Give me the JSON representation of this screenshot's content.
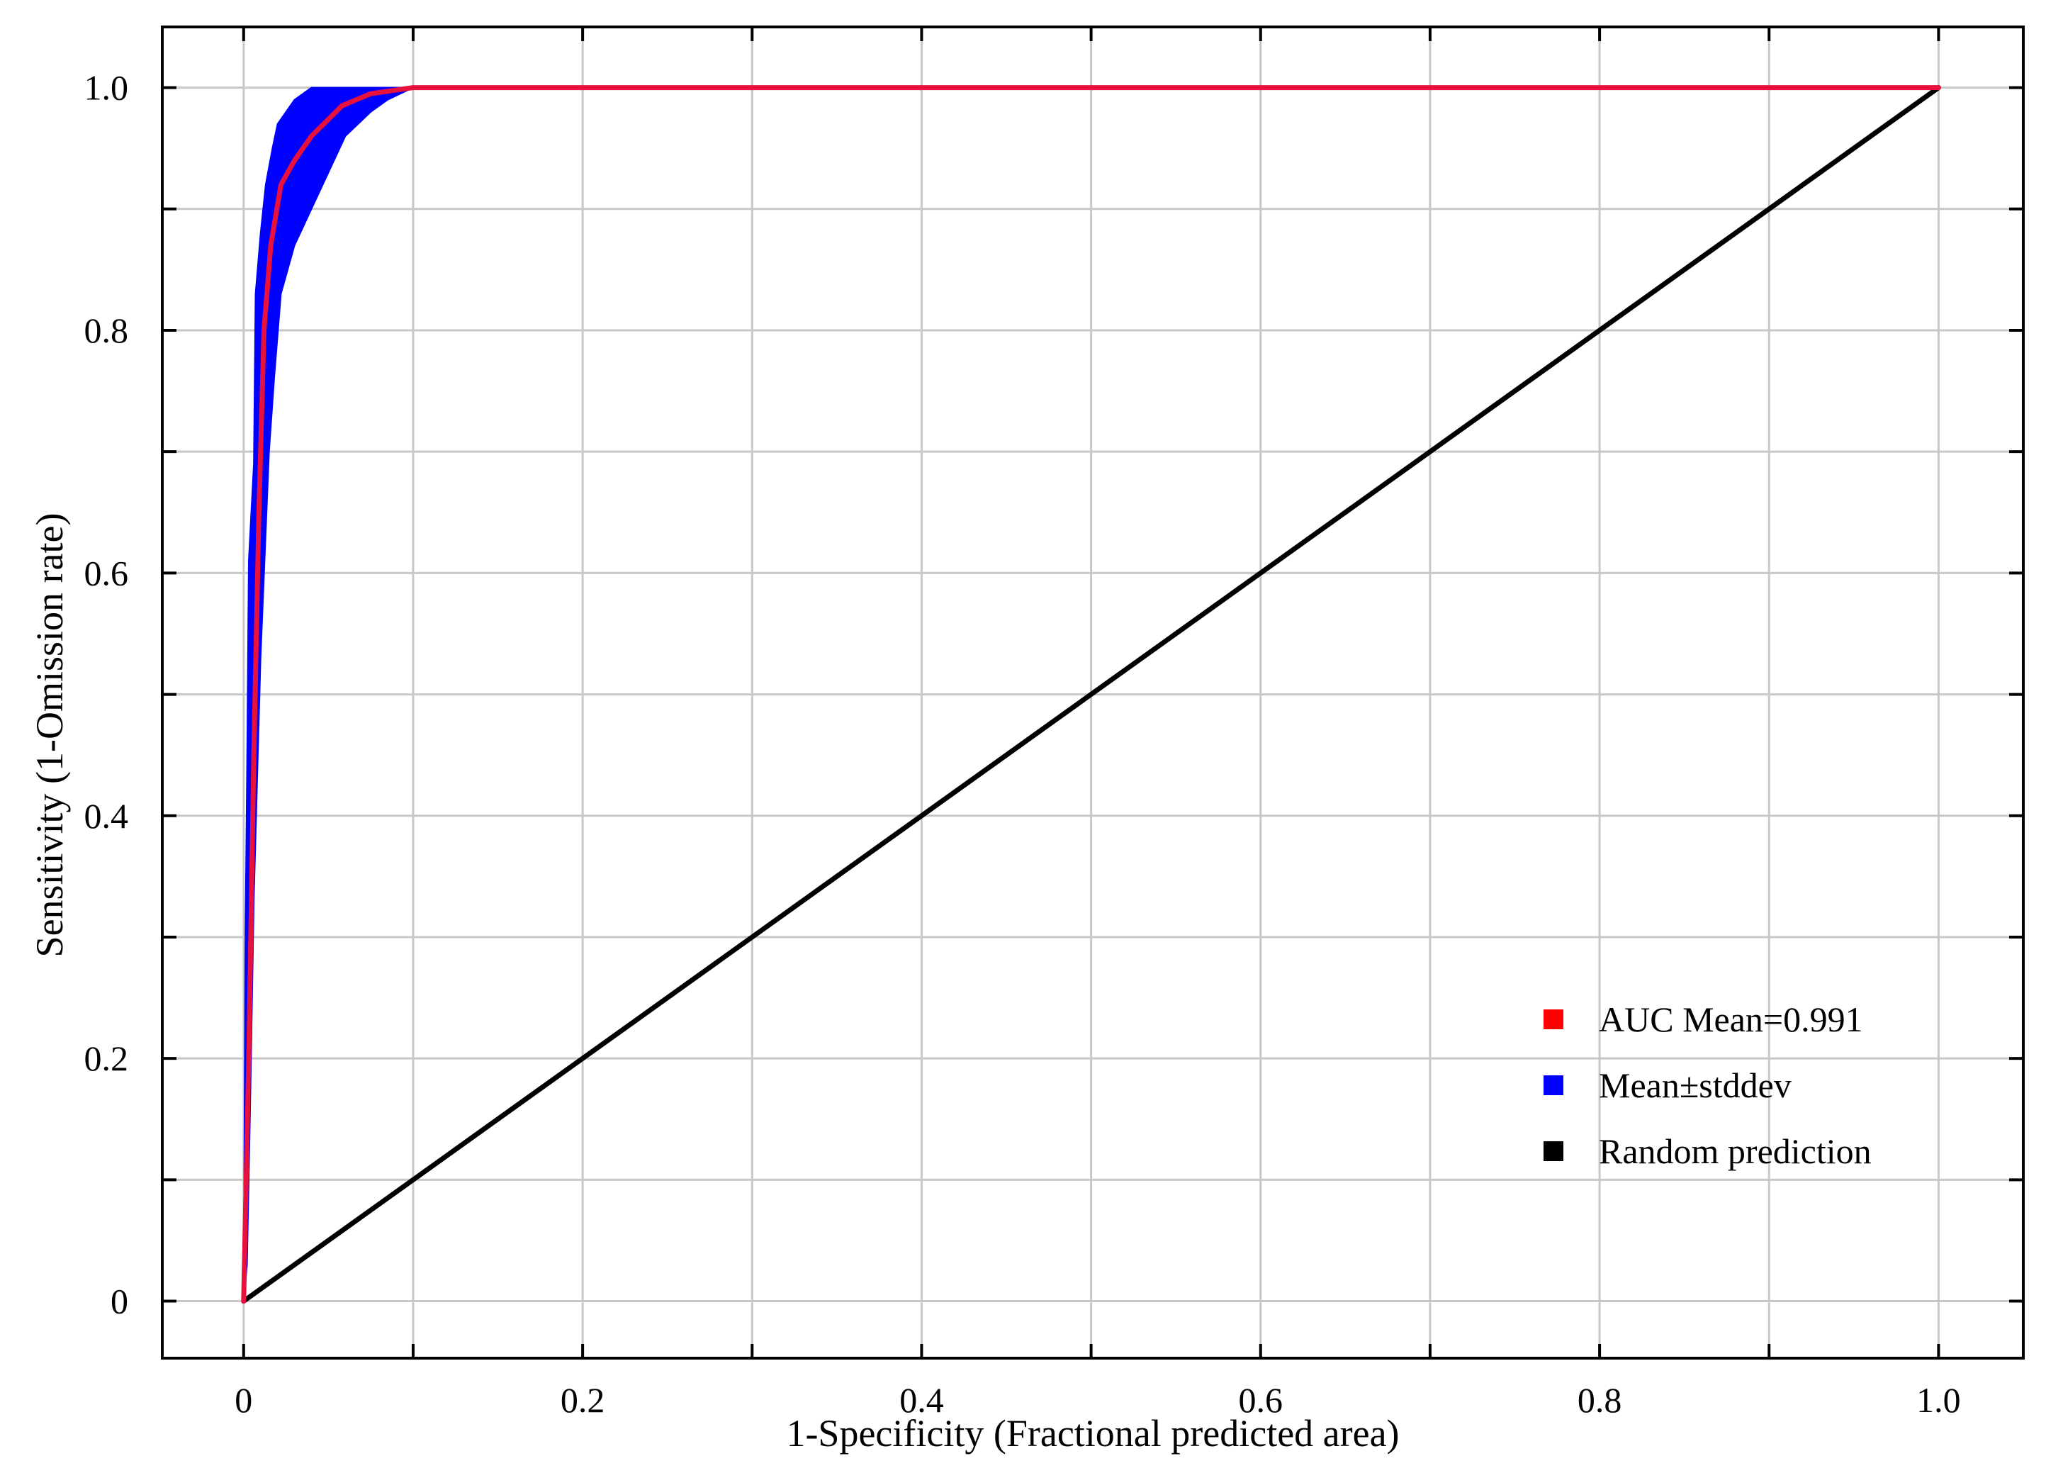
{
  "chart_data": {
    "type": "line",
    "title": "",
    "xlabel": "1-Specificity (Fractional predicted area)",
    "ylabel": "Sensitivity (1-Omission rate)",
    "xlim": [
      -0.048,
      1.05
    ],
    "ylim": [
      -0.047,
      1.05
    ],
    "grid": true,
    "legend_position": "bottom-right",
    "x_ticks": [
      {
        "value": 0,
        "label": "0"
      },
      {
        "value": 0.2,
        "label": "0.2"
      },
      {
        "value": 0.4,
        "label": "0.4"
      },
      {
        "value": 0.6,
        "label": "0.6"
      },
      {
        "value": 0.8,
        "label": "0.8"
      },
      {
        "value": 1.0,
        "label": "1.0"
      }
    ],
    "y_ticks": [
      {
        "value": 0,
        "label": "0"
      },
      {
        "value": 0.2,
        "label": "0.2"
      },
      {
        "value": 0.4,
        "label": "0.4"
      },
      {
        "value": 0.6,
        "label": "0.6"
      },
      {
        "value": 0.8,
        "label": "0.8"
      },
      {
        "value": 1.0,
        "label": "1.0"
      }
    ],
    "minor_gridlines": [
      0.1,
      0.3,
      0.5,
      0.7,
      0.9
    ],
    "series": [
      {
        "name": "Mean±stddev",
        "type": "area",
        "color": "#0000ff",
        "upper": [
          [
            0,
            0
          ],
          [
            0.001,
            0.3
          ],
          [
            0.002,
            0.44
          ],
          [
            0.003,
            0.61
          ],
          [
            0.006,
            0.69
          ],
          [
            0.007,
            0.83
          ],
          [
            0.01,
            0.88
          ],
          [
            0.013,
            0.92
          ],
          [
            0.017,
            0.95
          ],
          [
            0.02,
            0.97
          ],
          [
            0.025,
            0.98
          ],
          [
            0.03,
            0.99
          ],
          [
            0.04,
            1.0
          ],
          [
            1.0,
            1.0
          ]
        ],
        "lower": [
          [
            0,
            0
          ],
          [
            0.002,
            0.03
          ],
          [
            0.004,
            0.17
          ],
          [
            0.006,
            0.33
          ],
          [
            0.01,
            0.53
          ],
          [
            0.015,
            0.7
          ],
          [
            0.018,
            0.76
          ],
          [
            0.022,
            0.83
          ],
          [
            0.03,
            0.87
          ],
          [
            0.04,
            0.9
          ],
          [
            0.05,
            0.93
          ],
          [
            0.06,
            0.96
          ],
          [
            0.075,
            0.98
          ],
          [
            0.085,
            0.99
          ],
          [
            0.1,
            1.0
          ],
          [
            1.0,
            1.0
          ]
        ]
      },
      {
        "name": "AUC Mean=0.991",
        "type": "line",
        "color": "#e8103c",
        "points": [
          [
            0,
            0
          ],
          [
            0.003,
            0.2
          ],
          [
            0.006,
            0.45
          ],
          [
            0.009,
            0.65
          ],
          [
            0.012,
            0.8
          ],
          [
            0.016,
            0.87
          ],
          [
            0.022,
            0.92
          ],
          [
            0.03,
            0.94
          ],
          [
            0.04,
            0.96
          ],
          [
            0.058,
            0.985
          ],
          [
            0.075,
            0.995
          ],
          [
            0.1,
            1.0
          ],
          [
            1.0,
            1.0
          ]
        ]
      },
      {
        "name": "Random prediction",
        "type": "line",
        "color": "#000000",
        "points": [
          [
            0,
            0
          ],
          [
            1.0,
            1.0
          ]
        ]
      }
    ],
    "legend": [
      {
        "label": "AUC Mean=0.991",
        "color": "#ff0000"
      },
      {
        "label": "Mean±stddev",
        "color": "#0000ff"
      },
      {
        "label": "Random prediction",
        "color": "#000000"
      }
    ]
  }
}
